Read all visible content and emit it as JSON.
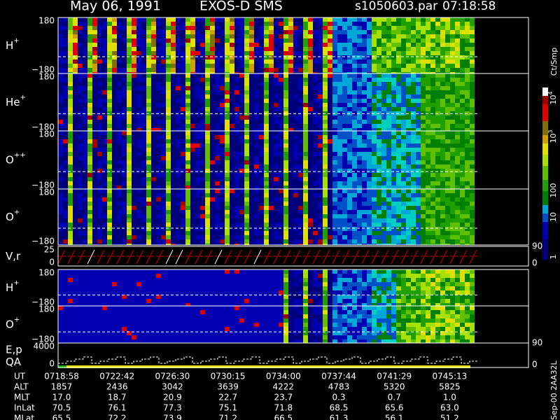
{
  "header": {
    "date": "May 06, 1991",
    "mission": "EXOS-D SMS",
    "file": "s1050603.par",
    "time": "07:18:58"
  },
  "panels": [
    {
      "label": "H",
      "sup": "+",
      "top": "180",
      "bottom": "−180"
    },
    {
      "label": "He",
      "sup": "+",
      "top": "180",
      "bottom": "−180"
    },
    {
      "label": "O",
      "sup": "++",
      "top": "180",
      "bottom": "−180"
    },
    {
      "label": "O",
      "sup": "+",
      "top": "180",
      "bottom": "−180"
    },
    {
      "label": "V,r",
      "top": "25",
      "bottom": "0",
      "right_top": "90",
      "right_bottom": "0"
    },
    {
      "label": "H",
      "sup": "+",
      "top": "180",
      "bottom": "−180"
    },
    {
      "label": "O",
      "sup": "+",
      "top": "180",
      "bottom": "−180"
    },
    {
      "label": "E,p",
      "label2": "QA",
      "top": "4000",
      "bottom": "0",
      "right_top": "90",
      "right_bottom": "0"
    }
  ],
  "colorbar": {
    "title": "Ct/Smp",
    "labels": [
      {
        "base": "10",
        "exp": "4"
      },
      {
        "base": "10",
        "exp": "3"
      },
      {
        "base": "100"
      },
      {
        "base": "10"
      },
      {
        "base": "1"
      }
    ]
  },
  "table": {
    "rows": [
      {
        "label": "UT",
        "cells": [
          "0718:58",
          "0722:42",
          "0726:30",
          "0730:15",
          "0734:00",
          "0737:44",
          "0741:29",
          "0745:13"
        ]
      },
      {
        "label": "ALT",
        "cells": [
          "1857",
          "2436",
          "3042",
          "3639",
          "4222",
          "4783",
          "5320",
          "5825"
        ]
      },
      {
        "label": "MLT",
        "cells": [
          "17.0",
          "18.7",
          "20.9",
          "22.7",
          "23.7",
          "0.3",
          "0.7",
          "1.0"
        ]
      },
      {
        "label": "InLat",
        "cells": [
          "70.5",
          "76.1",
          "77.3",
          "75.1",
          "71.8",
          "68.5",
          "65.6",
          "63.0"
        ]
      },
      {
        "label": "MLat",
        "cells": [
          "65.5",
          "72.2",
          "73.9",
          "71.2",
          "66.5",
          "61.3",
          "56.1",
          "51.2"
        ]
      }
    ]
  },
  "footer": {
    "version": "Sep-00 2AA32L"
  }
}
